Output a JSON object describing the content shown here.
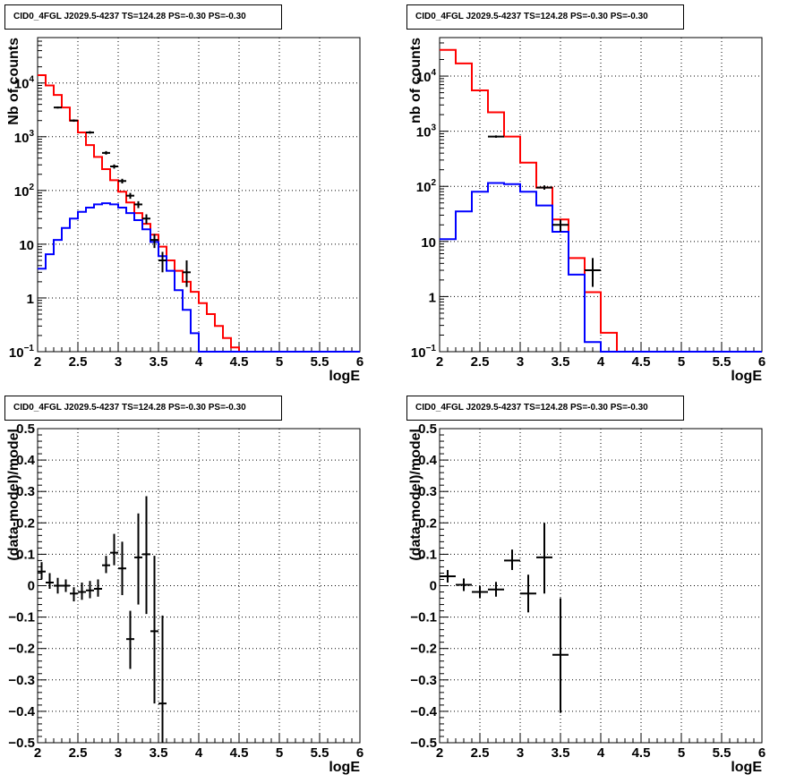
{
  "chart_data": [
    {
      "type": "line",
      "title": "CID0_4FGL J2029.5-4237 TS=124.28 PS=-0.30 PS=-0.30",
      "xlabel": "logE",
      "ylabel": "Nb of counts",
      "xlim": [
        2,
        6
      ],
      "ylim": [
        0.1,
        70000
      ],
      "yscale": "log",
      "grid": true,
      "x_ticks": [
        "2",
        "2.5",
        "3",
        "3.5",
        "4",
        "4.5",
        "5",
        "5.5",
        "6"
      ],
      "y_ticks": [
        {
          "value": 0.1,
          "mantissa": "10",
          "sup": "−1"
        },
        {
          "value": 1,
          "mantissa": "1",
          "sup": ""
        },
        {
          "value": 10,
          "mantissa": "10",
          "sup": ""
        },
        {
          "value": 100,
          "mantissa": "10",
          "sup": "2"
        },
        {
          "value": 1000,
          "mantissa": "10",
          "sup": "3"
        },
        {
          "value": 10000,
          "mantissa": "10",
          "sup": "4"
        }
      ],
      "bin_edges": [
        2.0,
        2.1,
        2.2,
        2.3,
        2.4,
        2.5,
        2.6,
        2.7,
        2.8,
        2.9,
        3.0,
        3.1,
        3.2,
        3.3,
        3.4,
        3.5,
        3.6,
        3.7,
        3.8,
        3.9,
        4.0,
        4.1,
        4.2,
        4.3,
        4.4,
        4.5,
        4.6,
        4.7,
        4.8,
        4.9,
        5.0,
        5.1,
        5.2,
        5.3,
        5.4,
        5.5,
        5.6,
        5.7,
        5.8,
        5.9,
        6.0
      ],
      "series": [
        {
          "color": "#ff0000",
          "style": "hist",
          "values": [
            14000,
            9000,
            6000,
            3500,
            2000,
            1200,
            700,
            420,
            250,
            155,
            95,
            60,
            38,
            24,
            15,
            9,
            5,
            3.2,
            2,
            1.3,
            0.8,
            0.5,
            0.3,
            0.18,
            0.12,
            0.1,
            0.1,
            0.1,
            0.1,
            0.1,
            0.1,
            0.1,
            0.1,
            0.1,
            0.1,
            0.1,
            0.1,
            0.1,
            0.1,
            0.1
          ]
        },
        {
          "color": "#0000ff",
          "style": "hist",
          "values": [
            3.5,
            6.5,
            12,
            20,
            30,
            40,
            48,
            55,
            58,
            55,
            48,
            38,
            28,
            19,
            11,
            6,
            3.2,
            1.4,
            0.6,
            0.22,
            0.1,
            0.1,
            0.1,
            0.1,
            0.1,
            0.1,
            0.1,
            0.1,
            0.1,
            0.1,
            0.1,
            0.1,
            0.1,
            0.1,
            0.1,
            0.1,
            0.1,
            0.1,
            0.1,
            0.1
          ]
        },
        {
          "color": "#000000",
          "style": "points",
          "points": [
            {
              "x": 2.25,
              "y": 3500,
              "lo": 3350,
              "hi": 3650,
              "dx": 0.05
            },
            {
              "x": 2.45,
              "y": 2000,
              "lo": 1900,
              "hi": 2100,
              "dx": 0.05
            },
            {
              "x": 2.65,
              "y": 1200,
              "lo": 1140,
              "hi": 1270,
              "dx": 0.05
            },
            {
              "x": 2.85,
              "y": 500,
              "lo": 465,
              "hi": 540,
              "dx": 0.05
            },
            {
              "x": 2.95,
              "y": 280,
              "lo": 255,
              "hi": 305,
              "dx": 0.05
            },
            {
              "x": 3.05,
              "y": 150,
              "lo": 135,
              "hi": 165,
              "dx": 0.05
            },
            {
              "x": 3.15,
              "y": 80,
              "lo": 70,
              "hi": 90,
              "dx": 0.05
            },
            {
              "x": 3.25,
              "y": 55,
              "lo": 47,
              "hi": 63,
              "dx": 0.05
            },
            {
              "x": 3.35,
              "y": 30,
              "lo": 24,
              "hi": 36,
              "dx": 0.05
            },
            {
              "x": 3.45,
              "y": 12,
              "lo": 8.5,
              "hi": 15.5,
              "dx": 0.05
            },
            {
              "x": 3.55,
              "y": 5,
              "lo": 3,
              "hi": 7.2,
              "dx": 0.05
            },
            {
              "x": 3.85,
              "y": 3,
              "lo": 1.6,
              "hi": 5,
              "dx": 0.05
            }
          ]
        }
      ]
    },
    {
      "type": "line",
      "title": "CID0_4FGL J2029.5-4237 TS=124.28 PS=-0.30 PS=-0.30",
      "xlabel": "logE",
      "ylabel": "nb of counts",
      "xlim": [
        2,
        6
      ],
      "ylim": [
        0.1,
        50000
      ],
      "yscale": "log",
      "grid": true,
      "x_ticks": [
        "2",
        "2.5",
        "3",
        "3.5",
        "4",
        "4.5",
        "5",
        "5.5",
        "6"
      ],
      "y_ticks": [
        {
          "value": 0.1,
          "mantissa": "10",
          "sup": "−1"
        },
        {
          "value": 1,
          "mantissa": "1",
          "sup": ""
        },
        {
          "value": 10,
          "mantissa": "10",
          "sup": ""
        },
        {
          "value": 100,
          "mantissa": "10",
          "sup": "2"
        },
        {
          "value": 1000,
          "mantissa": "10",
          "sup": "3"
        },
        {
          "value": 10000,
          "mantissa": "10",
          "sup": "4"
        }
      ],
      "bin_edges": [
        2.0,
        2.2,
        2.4,
        2.6,
        2.8,
        3.0,
        3.2,
        3.4,
        3.6,
        3.8,
        4.0,
        4.2,
        4.4,
        4.6,
        4.8,
        5.0,
        5.2,
        5.4,
        5.6,
        5.8,
        6.0
      ],
      "series": [
        {
          "color": "#ff0000",
          "style": "hist",
          "values": [
            30000,
            17000,
            5500,
            2200,
            800,
            270,
            95,
            25,
            5,
            1.2,
            0.22,
            0.1,
            0.1,
            0.1,
            0.1,
            0.1,
            0.1,
            0.1,
            0.1,
            0.1
          ]
        },
        {
          "color": "#0000ff",
          "style": "hist",
          "values": [
            11,
            35,
            80,
            115,
            110,
            80,
            45,
            15,
            2.5,
            0.15,
            0.1,
            0.1,
            0.1,
            0.1,
            0.1,
            0.1,
            0.1,
            0.1,
            0.1,
            0.1
          ]
        },
        {
          "color": "#000000",
          "style": "points",
          "points": [
            {
              "x": 2.7,
              "y": 800,
              "lo": 760,
              "hi": 840,
              "dx": 0.1
            },
            {
              "x": 3.3,
              "y": 95,
              "lo": 87,
              "hi": 104,
              "dx": 0.1
            },
            {
              "x": 3.5,
              "y": 20,
              "lo": 15,
              "hi": 25,
              "dx": 0.1
            },
            {
              "x": 3.9,
              "y": 3,
              "lo": 1.5,
              "hi": 5,
              "dx": 0.1
            }
          ]
        }
      ]
    },
    {
      "type": "scatter",
      "title": "CID0_4FGL J2029.5-4237 TS=124.28 PS=-0.30 PS=-0.30",
      "xlabel": "logE",
      "ylabel": "(data-model)/model",
      "xlim": [
        2,
        6
      ],
      "ylim": [
        -0.5,
        0.5
      ],
      "grid": true,
      "x_ticks": [
        "2",
        "2.5",
        "3",
        "3.5",
        "4",
        "4.5",
        "5",
        "5.5",
        "6"
      ],
      "y_ticks": [
        "−0.5",
        "−0.4",
        "−0.3",
        "−0.2",
        "−0.1",
        "0",
        "0.1",
        "0.2",
        "0.3",
        "0.4",
        "0.5"
      ],
      "series": [
        {
          "color": "#000000",
          "points": [
            {
              "x": 2.05,
              "y": 0.045,
              "lo": 0.02,
              "hi": 0.075,
              "dx": 0.05
            },
            {
              "x": 2.15,
              "y": 0.01,
              "lo": -0.01,
              "hi": 0.04,
              "dx": 0.05
            },
            {
              "x": 2.25,
              "y": 0.0,
              "lo": -0.025,
              "hi": 0.025,
              "dx": 0.05
            },
            {
              "x": 2.35,
              "y": 0.0,
              "lo": -0.02,
              "hi": 0.02,
              "dx": 0.05
            },
            {
              "x": 2.45,
              "y": -0.025,
              "lo": -0.05,
              "hi": -0.005,
              "dx": 0.05
            },
            {
              "x": 2.55,
              "y": -0.02,
              "lo": -0.045,
              "hi": 0.01,
              "dx": 0.05
            },
            {
              "x": 2.65,
              "y": -0.015,
              "lo": -0.04,
              "hi": 0.015,
              "dx": 0.05
            },
            {
              "x": 2.75,
              "y": -0.01,
              "lo": -0.035,
              "hi": 0.02,
              "dx": 0.05
            },
            {
              "x": 2.85,
              "y": 0.065,
              "lo": 0.04,
              "hi": 0.095,
              "dx": 0.05
            },
            {
              "x": 2.95,
              "y": 0.105,
              "lo": 0.065,
              "hi": 0.165,
              "dx": 0.05
            },
            {
              "x": 3.05,
              "y": 0.055,
              "lo": -0.03,
              "hi": 0.14,
              "dx": 0.05
            },
            {
              "x": 3.15,
              "y": -0.17,
              "lo": -0.265,
              "hi": -0.08,
              "dx": 0.05
            },
            {
              "x": 3.25,
              "y": 0.09,
              "lo": -0.06,
              "hi": 0.23,
              "dx": 0.05
            },
            {
              "x": 3.35,
              "y": 0.1,
              "lo": -0.09,
              "hi": 0.285,
              "dx": 0.05
            },
            {
              "x": 3.45,
              "y": -0.145,
              "lo": -0.375,
              "hi": 0.095,
              "dx": 0.05
            },
            {
              "x": 3.55,
              "y": -0.375,
              "lo": -0.5,
              "hi": -0.095,
              "dx": 0.05
            }
          ]
        }
      ]
    },
    {
      "type": "scatter",
      "title": "CID0_4FGL J2029.5-4237 TS=124.28 PS=-0.30 PS=-0.30",
      "xlabel": "logE",
      "ylabel": "(data-model)/model",
      "xlim": [
        2,
        6
      ],
      "ylim": [
        -0.5,
        0.5
      ],
      "grid": true,
      "x_ticks": [
        "2",
        "2.5",
        "3",
        "3.5",
        "4",
        "4.5",
        "5",
        "5.5",
        "6"
      ],
      "y_ticks": [
        "−0.5",
        "−0.4",
        "−0.3",
        "−0.2",
        "−0.1",
        "0",
        "0.1",
        "0.2",
        "0.3",
        "0.4",
        "0.5"
      ],
      "series": [
        {
          "color": "#000000",
          "points": [
            {
              "x": 2.1,
              "y": 0.03,
              "lo": 0.01,
              "hi": 0.05,
              "dx": 0.1
            },
            {
              "x": 2.3,
              "y": 0.003,
              "lo": -0.017,
              "hi": 0.023,
              "dx": 0.1
            },
            {
              "x": 2.5,
              "y": -0.02,
              "lo": -0.04,
              "hi": 0.0,
              "dx": 0.1
            },
            {
              "x": 2.7,
              "y": -0.012,
              "lo": -0.035,
              "hi": 0.012,
              "dx": 0.1
            },
            {
              "x": 2.9,
              "y": 0.08,
              "lo": 0.05,
              "hi": 0.115,
              "dx": 0.1
            },
            {
              "x": 3.1,
              "y": -0.025,
              "lo": -0.085,
              "hi": 0.035,
              "dx": 0.1
            },
            {
              "x": 3.3,
              "y": 0.09,
              "lo": -0.025,
              "hi": 0.2,
              "dx": 0.1
            },
            {
              "x": 3.5,
              "y": -0.22,
              "lo": -0.405,
              "hi": -0.04,
              "dx": 0.1
            }
          ]
        }
      ]
    }
  ]
}
